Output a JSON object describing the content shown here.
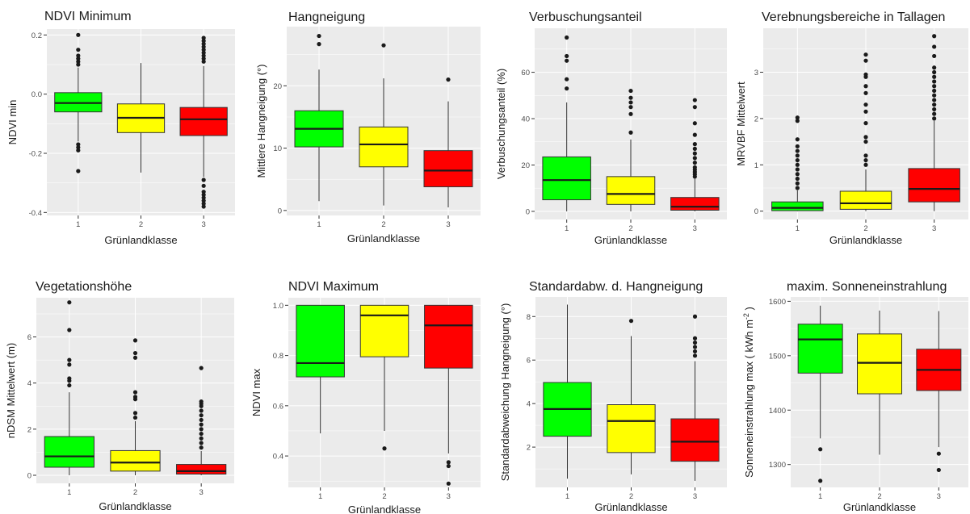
{
  "colors": {
    "panel_bg": "#ebebeb",
    "grid": "#ffffff",
    "class_fill": [
      "#00ff00",
      "#ffff00",
      "#ff0000"
    ],
    "line": "#333333"
  },
  "chart_data": [
    {
      "type": "boxplot",
      "title": "NDVI Minimum",
      "xlabel": "Grünlandklasse",
      "ylabel": "NDVI min",
      "categories": [
        "1",
        "2",
        "3"
      ],
      "ylim": [
        -0.41,
        0.22
      ],
      "yticks": [
        -0.4,
        -0.2,
        0.0,
        0.2
      ],
      "ytick_labels": [
        "-0.4",
        "-0.2",
        "0.0",
        "0.2"
      ],
      "boxes": [
        {
          "min": -0.16,
          "q1": -0.06,
          "median": -0.03,
          "q3": 0.005,
          "max": 0.09,
          "outliers": [
            0.2,
            0.15,
            0.13,
            0.12,
            0.11,
            0.1,
            -0.17,
            -0.18,
            -0.19,
            -0.26
          ]
        },
        {
          "min": -0.265,
          "q1": -0.13,
          "median": -0.08,
          "q3": -0.033,
          "max": 0.105,
          "outliers": []
        },
        {
          "min": -0.28,
          "q1": -0.14,
          "median": -0.085,
          "q3": -0.045,
          "max": 0.095,
          "outliers": [
            0.19,
            0.18,
            0.17,
            0.16,
            0.15,
            0.14,
            0.13,
            0.12,
            0.11,
            -0.29,
            -0.31,
            -0.33,
            -0.34,
            -0.35,
            -0.36,
            -0.37,
            -0.38
          ]
        }
      ]
    },
    {
      "type": "boxplot",
      "title": "Hangneigung",
      "xlabel": "Grünlandklasse",
      "ylabel": "Mittlere Hangneigung (°)",
      "categories": [
        "1",
        "2",
        "3"
      ],
      "ylim": [
        -0.8,
        29.5
      ],
      "yticks": [
        0,
        10,
        20
      ],
      "ytick_labels": [
        "0",
        "10",
        "20"
      ],
      "boxes": [
        {
          "min": 1.5,
          "q1": 10.2,
          "median": 13.1,
          "q3": 16.0,
          "max": 22.6,
          "outliers": [
            28.0,
            26.7
          ]
        },
        {
          "min": 0.8,
          "q1": 7.0,
          "median": 10.6,
          "q3": 13.4,
          "max": 21.2,
          "outliers": [
            26.5
          ]
        },
        {
          "min": 0.5,
          "q1": 3.8,
          "median": 6.4,
          "q3": 9.6,
          "max": 17.5,
          "outliers": [
            21.0
          ]
        }
      ]
    },
    {
      "type": "boxplot",
      "title": "Verbuschungsanteil",
      "xlabel": "Grünlandklasse",
      "ylabel": "Verbuschungsanteil (%)",
      "categories": [
        "1",
        "2",
        "3"
      ],
      "ylim": [
        -3.5,
        79
      ],
      "yticks": [
        0,
        20,
        40,
        60
      ],
      "ytick_labels": [
        "0",
        "20",
        "40",
        "60"
      ],
      "boxes": [
        {
          "min": 0,
          "q1": 5.0,
          "median": 13.5,
          "q3": 23.5,
          "max": 47,
          "outliers": [
            75,
            67,
            65,
            57,
            53
          ]
        },
        {
          "min": 0,
          "q1": 3.0,
          "median": 7.5,
          "q3": 15.0,
          "max": 31,
          "outliers": [
            52,
            49,
            47,
            45,
            42,
            34
          ]
        },
        {
          "min": 0,
          "q1": 0.5,
          "median": 2.0,
          "q3": 6.0,
          "max": 14,
          "outliers": [
            48,
            45,
            38,
            33,
            29,
            27,
            25,
            23,
            21,
            19,
            18,
            17,
            16,
            15
          ]
        }
      ]
    },
    {
      "type": "boxplot",
      "title": "Verebnungsbereiche in Tallagen",
      "xlabel": "Grünlandklasse",
      "ylabel": "MRVBF Mittelwert",
      "categories": [
        "1",
        "2",
        "3"
      ],
      "ylim": [
        -0.18,
        3.95
      ],
      "yticks": [
        0,
        1,
        2,
        3
      ],
      "ytick_labels": [
        "0",
        "1",
        "2",
        "3"
      ],
      "boxes": [
        {
          "min": 0,
          "q1": 0.01,
          "median": 0.07,
          "q3": 0.2,
          "max": 0.45,
          "outliers": [
            2.02,
            1.95,
            1.55,
            1.4,
            1.3,
            1.2,
            1.1,
            1.0,
            0.9,
            0.8,
            0.7,
            0.6,
            0.5
          ]
        },
        {
          "min": 0,
          "q1": 0.04,
          "median": 0.17,
          "q3": 0.43,
          "max": 0.9,
          "outliers": [
            3.38,
            3.25,
            2.95,
            2.9,
            2.7,
            2.55,
            2.3,
            2.15,
            1.9,
            1.6,
            1.5,
            1.2,
            1.1,
            1.0
          ]
        },
        {
          "min": 0,
          "q1": 0.2,
          "median": 0.48,
          "q3": 0.92,
          "max": 1.95,
          "outliers": [
            3.78,
            3.55,
            3.35,
            3.1,
            3.0,
            2.9,
            2.8,
            2.7,
            2.6,
            2.5,
            2.4,
            2.3,
            2.2,
            2.1,
            2.0
          ]
        }
      ]
    },
    {
      "type": "boxplot",
      "title": "Vegetationshöhe",
      "xlabel": "Grünlandklasse",
      "ylabel": "nDSM Mittelwert (m)",
      "categories": [
        "1",
        "2",
        "3"
      ],
      "ylim": [
        -0.35,
        7.7
      ],
      "yticks": [
        0,
        2,
        4,
        6
      ],
      "ytick_labels": [
        "0",
        "2",
        "4",
        "6"
      ],
      "boxes": [
        {
          "min": 0,
          "q1": 0.35,
          "median": 0.82,
          "q3": 1.68,
          "max": 3.6,
          "outliers": [
            7.5,
            6.3,
            5.0,
            4.8,
            4.2,
            4.1,
            3.9
          ]
        },
        {
          "min": 0,
          "q1": 0.18,
          "median": 0.55,
          "q3": 1.07,
          "max": 2.35,
          "outliers": [
            5.85,
            5.3,
            5.1,
            3.6,
            3.4,
            3.3,
            2.7,
            2.5
          ]
        },
        {
          "min": 0,
          "q1": 0.05,
          "median": 0.18,
          "q3": 0.47,
          "max": 1.05,
          "outliers": [
            4.65,
            3.2,
            3.1,
            3.0,
            2.8,
            2.6,
            2.4,
            2.2,
            2.0,
            1.8,
            1.6,
            1.4,
            1.2
          ]
        }
      ]
    },
    {
      "type": "boxplot",
      "title": "NDVI Maximum",
      "xlabel": "Grünlandklasse",
      "ylabel": "NDVI max",
      "categories": [
        "1",
        "2",
        "3"
      ],
      "ylim": [
        0.275,
        1.03
      ],
      "yticks": [
        0.4,
        0.6,
        0.8,
        1.0
      ],
      "ytick_labels": [
        "0.4",
        "0.6",
        "0.8",
        "1.0"
      ],
      "boxes": [
        {
          "min": 0.49,
          "q1": 0.715,
          "median": 0.77,
          "q3": 1.0,
          "max": 1.0,
          "outliers": []
        },
        {
          "min": 0.5,
          "q1": 0.795,
          "median": 0.96,
          "q3": 1.0,
          "max": 1.0,
          "outliers": [
            0.43
          ]
        },
        {
          "min": 0.41,
          "q1": 0.75,
          "median": 0.92,
          "q3": 1.0,
          "max": 1.0,
          "outliers": [
            0.375,
            0.36,
            0.29
          ]
        }
      ]
    },
    {
      "type": "boxplot",
      "title": "Standardabw. d. Hangneigung",
      "xlabel": "Grünlandklasse",
      "ylabel": "Standardabweichung Hangneigung (°)",
      "categories": [
        "1",
        "2",
        "3"
      ],
      "ylim": [
        0.15,
        8.9
      ],
      "yticks": [
        2,
        4,
        6,
        8
      ],
      "ytick_labels": [
        "2",
        "4",
        "6",
        "8"
      ],
      "boxes": [
        {
          "min": 0.55,
          "q1": 2.5,
          "median": 3.75,
          "q3": 4.97,
          "max": 8.55,
          "outliers": []
        },
        {
          "min": 0.75,
          "q1": 1.75,
          "median": 3.2,
          "q3": 3.95,
          "max": 7.1,
          "outliers": [
            7.8
          ]
        },
        {
          "min": 0.45,
          "q1": 1.35,
          "median": 2.25,
          "q3": 3.3,
          "max": 5.95,
          "outliers": [
            8.0,
            7.0,
            6.8,
            6.6,
            6.4,
            6.2
          ]
        }
      ]
    },
    {
      "type": "boxplot",
      "title": "maxim. Sonneneinstrahlung",
      "xlabel": "Grünlandklasse",
      "ylabel": "Sonneneinstrahlung max ( kWh m",
      "ylabel_sup": "-2",
      "ylabel_end": " )",
      "categories": [
        "1",
        "2",
        "3"
      ],
      "ylim": [
        1258,
        1608
      ],
      "yticks": [
        1300,
        1400,
        1500,
        1600
      ],
      "ytick_labels": [
        "1300",
        "1400",
        "1500",
        "1600"
      ],
      "boxes": [
        {
          "min": 1348,
          "q1": 1468,
          "median": 1530,
          "q3": 1558,
          "max": 1592,
          "outliers": [
            1328,
            1270
          ]
        },
        {
          "min": 1318,
          "q1": 1430,
          "median": 1487,
          "q3": 1540,
          "max": 1583,
          "outliers": []
        },
        {
          "min": 1332,
          "q1": 1436,
          "median": 1474,
          "q3": 1512,
          "max": 1582,
          "outliers": [
            1320,
            1290
          ]
        }
      ]
    }
  ]
}
